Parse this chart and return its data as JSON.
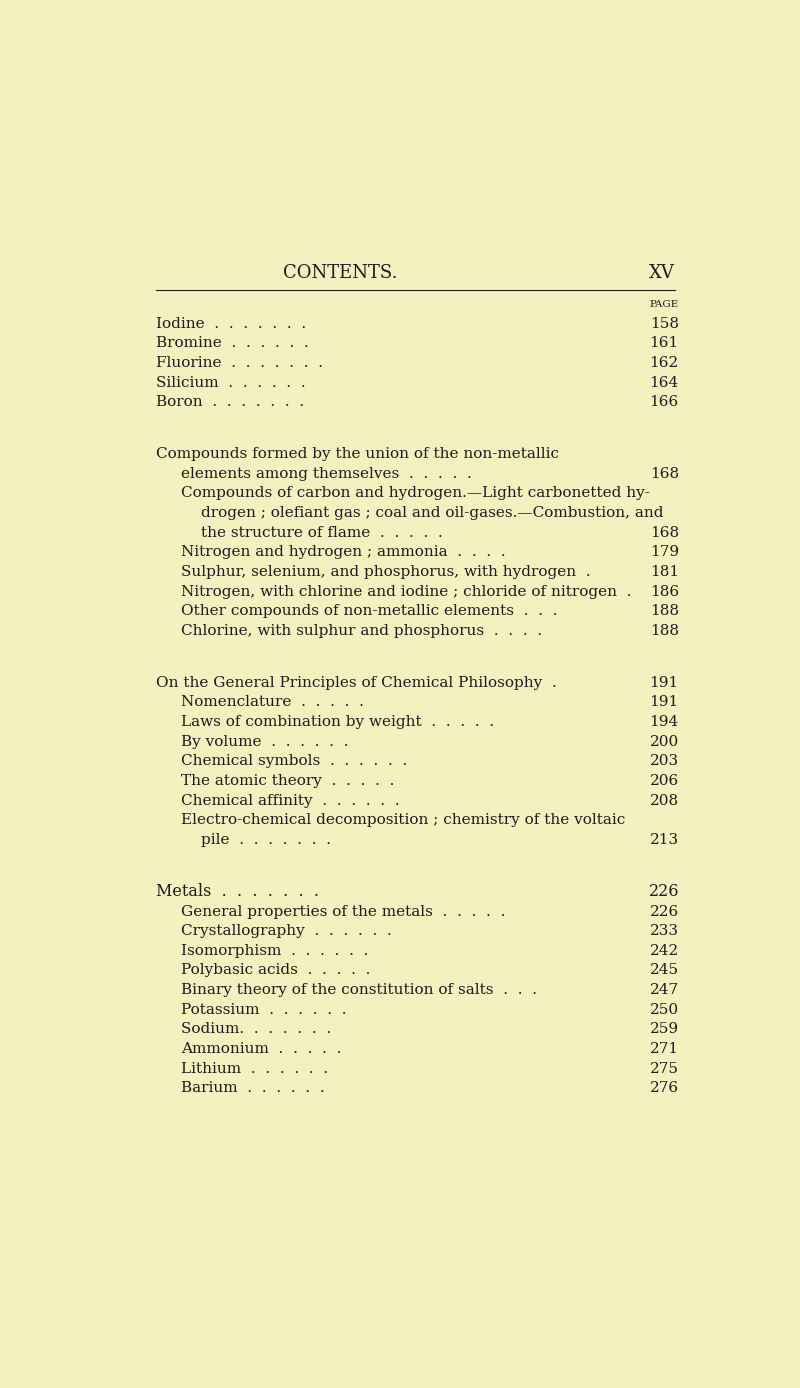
{
  "bg_color": "#f5f0c0",
  "text_color": "#1c1c1c",
  "page_title": "CONTENTS.",
  "page_number": "XV",
  "page_label": "PAGE",
  "sections": [
    {
      "type": "simple",
      "text": "Iodine  .  .  .  .  .  .  .",
      "page": "158",
      "indent": 0
    },
    {
      "type": "simple",
      "text": "Bromine  .  .  .  .  .  .",
      "page": "161",
      "indent": 0
    },
    {
      "type": "simple",
      "text": "Fluorine  .  .  .  .  .  .  .",
      "page": "162",
      "indent": 0
    },
    {
      "type": "simple",
      "text": "Silicium  .  .  .  .  .  .",
      "page": "164",
      "indent": 0
    },
    {
      "type": "simple",
      "text": "Boron  .  .  .  .  .  .  .",
      "page": "166",
      "indent": 0
    },
    {
      "type": "gap",
      "size": 0.42
    },
    {
      "type": "heading_line1",
      "text": "Compounds formed by the union of the non-metallic",
      "indent": 0
    },
    {
      "type": "heading_line2",
      "text": "elements among themselves  .  .  .  .  .",
      "page": "168",
      "indent": 1
    },
    {
      "type": "multi1",
      "text": "Compounds of carbon and hydrogen.—Light carbonetted hy-",
      "indent": 1
    },
    {
      "type": "multi2",
      "text": "drogen ; olefiant gas ; coal and oil-gases.—Combustion, and",
      "indent": 2
    },
    {
      "type": "multi2_last",
      "text": "the structure of flame  .  .  .  .  .",
      "page": "168",
      "indent": 2
    },
    {
      "type": "simple",
      "text": "Nitrogen and hydrogen ; ammonia  .  .  .  .",
      "page": "179",
      "indent": 1
    },
    {
      "type": "simple",
      "text": "Sulphur, selenium, and phosphorus, with hydrogen  .",
      "page": "181",
      "indent": 1
    },
    {
      "type": "simple",
      "text": "Nitrogen, with chlorine and iodine ; chloride of nitrogen  .",
      "page": "186",
      "indent": 1
    },
    {
      "type": "simple",
      "text": "Other compounds of non-metallic elements  .  .  .",
      "page": "188",
      "indent": 1
    },
    {
      "type": "simple",
      "text": "Chlorine, with sulphur and phosphorus  .  .  .  .",
      "page": "188",
      "indent": 1
    },
    {
      "type": "gap",
      "size": 0.42
    },
    {
      "type": "section_heading",
      "text": "On the General Principles of Chemical Philosophy  .",
      "page": "191",
      "indent": 0
    },
    {
      "type": "simple",
      "text": "Nomenclature  .  .  .  .  .",
      "page": "191",
      "indent": 1
    },
    {
      "type": "simple",
      "text": "Laws of combination by weight  .  .  .  .  .",
      "page": "194",
      "indent": 1
    },
    {
      "type": "simple",
      "text": "By volume  .  .  .  .  .  .",
      "page": "200",
      "indent": 1
    },
    {
      "type": "simple",
      "text": "Chemical symbols  .  .  .  .  .  .",
      "page": "203",
      "indent": 1
    },
    {
      "type": "simple",
      "text": "The atomic theory  .  .  .  .  .",
      "page": "206",
      "indent": 1
    },
    {
      "type": "simple",
      "text": "Chemical affinity  .  .  .  .  .  .",
      "page": "208",
      "indent": 1
    },
    {
      "type": "multi1",
      "text": "Electro-chemical decomposition ; chemistry of the voltaic",
      "indent": 1
    },
    {
      "type": "multi2_last",
      "text": "pile  .  .  .  .  .  .  .",
      "page": "213",
      "indent": 2
    },
    {
      "type": "gap",
      "size": 0.42
    },
    {
      "type": "metals_heading",
      "text": "Metals  .  .  .  .  .  .  .",
      "page": "226",
      "indent": 0
    },
    {
      "type": "simple",
      "text": "General properties of the metals  .  .  .  .  .",
      "page": "226",
      "indent": 1
    },
    {
      "type": "simple",
      "text": "Crystallography  .  .  .  .  .  .",
      "page": "233",
      "indent": 1
    },
    {
      "type": "simple",
      "text": "Isomorphism  .  .  .  .  .  .",
      "page": "242",
      "indent": 1
    },
    {
      "type": "simple",
      "text": "Polybasic acids  .  .  .  .  .",
      "page": "245",
      "indent": 1
    },
    {
      "type": "simple",
      "text": "Binary theory of the constitution of salts  .  .  .",
      "page": "247",
      "indent": 1
    },
    {
      "type": "simple",
      "text": "Potassium  .  .  .  .  .  .",
      "page": "250",
      "indent": 1
    },
    {
      "type": "simple",
      "text": "Sodium.  .  .  .  .  .  .",
      "page": "259",
      "indent": 1
    },
    {
      "type": "simple",
      "text": "Ammonium  .  .  .  .  .",
      "page": "271",
      "indent": 1
    },
    {
      "type": "simple",
      "text": "Lithium  .  .  .  .  .  .",
      "page": "275",
      "indent": 1
    },
    {
      "type": "simple",
      "text": "Barium  .  .  .  .  .  .",
      "page": "276",
      "indent": 1
    }
  ]
}
